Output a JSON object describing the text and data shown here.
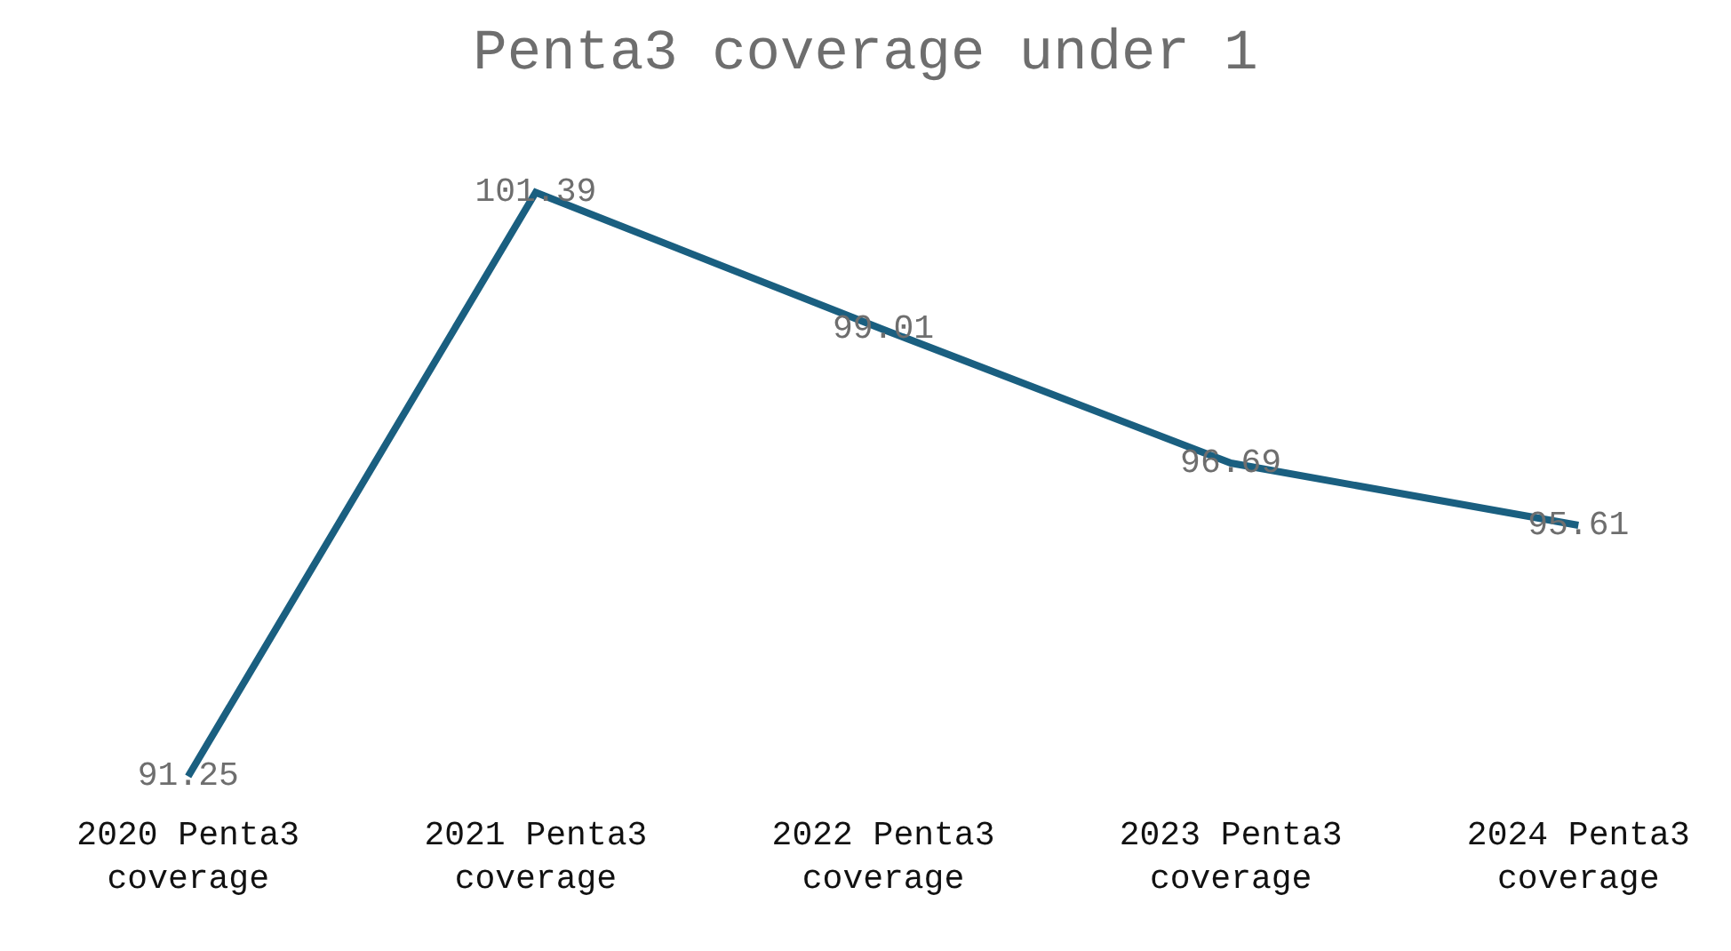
{
  "chart_data": {
    "type": "line",
    "title": "Penta3 coverage under 1",
    "categories": [
      "2020 Penta3 coverage",
      "2021 Penta3 coverage",
      "2022 Penta3 coverage",
      "2023 Penta3 coverage",
      "2024 Penta3 coverage"
    ],
    "series": [
      {
        "color": "#1a5f80",
        "values": [
          91.25,
          101.39,
          99.01,
          96.69,
          95.61
        ]
      }
    ],
    "data_labels": true,
    "marker": "none",
    "line_style": "solid",
    "tick_labels": "x"
  }
}
